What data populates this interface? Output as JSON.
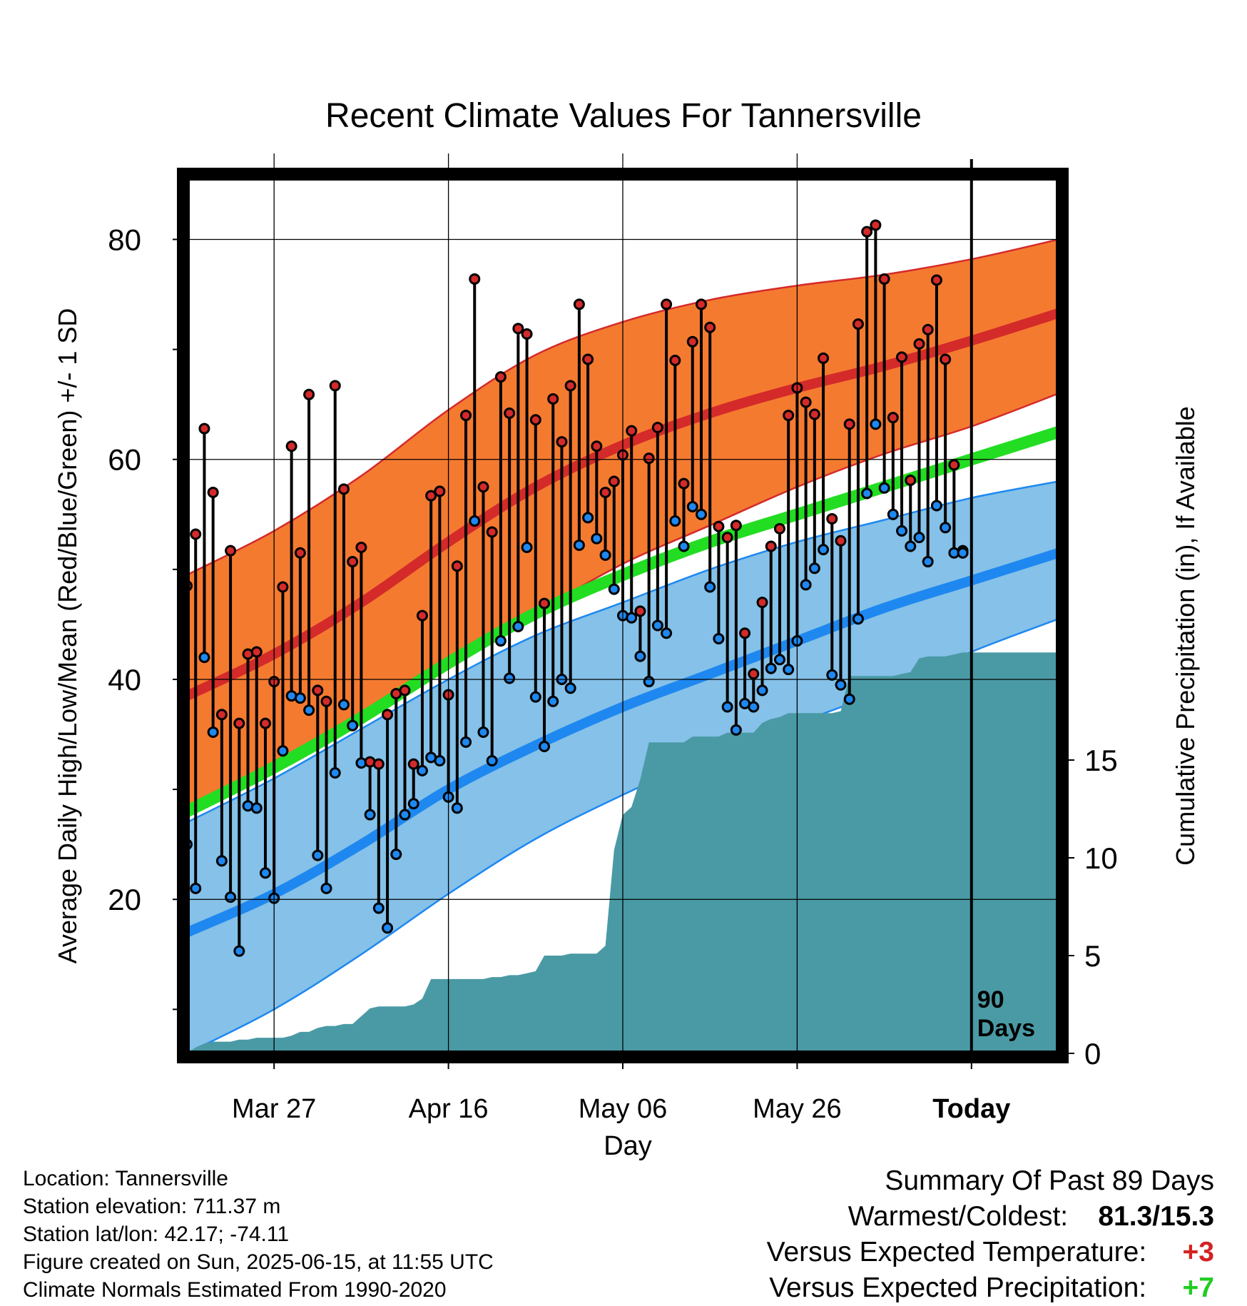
{
  "title": "Recent Climate Values For Tannersville",
  "xlabel": "Day",
  "ylabel_left": "Average Daily High/Low/Mean (Red/Blue/Green) +/- 1 SD",
  "ylabel_right": "Cumulative Precipitation (in), If Available",
  "today_marker": {
    "line1": "90",
    "line2": "Days"
  },
  "info": {
    "location": "Location: Tannersville",
    "elevation": "Station elevation: 711.37 m",
    "latlon": "Station lat/lon: 42.17; -74.11",
    "created": "Figure created on Sun, 2025-06-15, at 11:55 UTC",
    "normals": "Climate Normals Estimated From 1990-2020"
  },
  "summary": {
    "heading": "Summary Of Past 89 Days",
    "warm_cold_label": "Warmest/Coldest:",
    "warm_cold_value": "81.3/15.3",
    "temp_label": "Versus Expected Temperature:",
    "temp_value": "+3",
    "precip_label": "Versus Expected Precipitation:",
    "precip_value": "+7"
  },
  "colors": {
    "high_band": "#f47a30",
    "high_mean": "#d42a2a",
    "low_band": "#85c1e8",
    "low_mean": "#1e88f0",
    "mean": "#22dd22",
    "precip": "#4a9aa5"
  },
  "chart_data": {
    "type": "line",
    "x_axis": {
      "label": "Day",
      "range": [
        -90,
        10
      ],
      "ticks": [
        {
          "x": -80,
          "label": "Mar 27"
        },
        {
          "x": -60,
          "label": "Apr 16"
        },
        {
          "x": -40,
          "label": "May 06"
        },
        {
          "x": -20,
          "label": "May 26"
        },
        {
          "x": 0,
          "label": "Today"
        }
      ]
    },
    "y_left": {
      "range": [
        6,
        86
      ],
      "ticks": [
        20,
        40,
        60,
        80
      ],
      "minor_ticks": [
        10,
        30,
        50,
        70
      ]
    },
    "y_right": {
      "range": [
        0,
        45
      ],
      "ticks": [
        0,
        5,
        10,
        15
      ]
    },
    "grid": true,
    "normals": {
      "x": [
        -90,
        -80,
        -70,
        -60,
        -50,
        -40,
        -30,
        -20,
        -10,
        0,
        10
      ],
      "high_mean": [
        38.5,
        42.3,
        47.0,
        52.5,
        57.5,
        61.3,
        64.2,
        66.5,
        68.5,
        70.8,
        73.3
      ],
      "high_upper": [
        49.5,
        53.5,
        58.5,
        64.5,
        69.5,
        72.5,
        74.5,
        75.8,
        76.8,
        78.2,
        80.0
      ],
      "high_lower": [
        28.0,
        31.5,
        36.0,
        41.0,
        46.0,
        50.5,
        54.0,
        57.5,
        60.5,
        63.0,
        66.0
      ],
      "mean": [
        28.0,
        32.0,
        36.5,
        41.5,
        46.0,
        49.5,
        52.5,
        55.0,
        57.5,
        60.0,
        62.5
      ],
      "low_mean": [
        17.0,
        20.5,
        25.0,
        30.0,
        34.0,
        37.5,
        40.5,
        43.5,
        46.5,
        49.0,
        51.5
      ],
      "low_upper": [
        27.0,
        31.0,
        35.5,
        40.0,
        44.0,
        47.0,
        50.0,
        52.5,
        54.5,
        56.5,
        58.0
      ],
      "low_lower": [
        6.0,
        10.0,
        15.0,
        20.5,
        25.5,
        29.5,
        33.0,
        36.0,
        39.0,
        42.5,
        45.5
      ]
    },
    "daily": {
      "x": [
        -90,
        -89,
        -88,
        -87,
        -86,
        -85,
        -84,
        -83,
        -82,
        -81,
        -80,
        -79,
        -78,
        -77,
        -76,
        -75,
        -74,
        -73,
        -72,
        -71,
        -70,
        -69,
        -68,
        -67,
        -66,
        -65,
        -64,
        -63,
        -62,
        -61,
        -60,
        -59,
        -58,
        -57,
        -56,
        -55,
        -54,
        -53,
        -52,
        -51,
        -50,
        -49,
        -48,
        -47,
        -46,
        -45,
        -44,
        -43,
        -42,
        -41,
        -40,
        -39,
        -38,
        -37,
        -36,
        -35,
        -34,
        -33,
        -32,
        -31,
        -30,
        -29,
        -28,
        -27,
        -26,
        -25,
        -24,
        -23,
        -22,
        -21,
        -20,
        -19,
        -18,
        -17,
        -16,
        -15,
        -14,
        -13,
        -12,
        -11,
        -10,
        -9,
        -8,
        -7,
        -6,
        -5,
        -4,
        -3,
        -2,
        -1
      ],
      "high": [
        48.5,
        53.2,
        62.8,
        57.0,
        36.8,
        51.7,
        36.0,
        42.3,
        42.5,
        36.0,
        39.8,
        48.4,
        61.2,
        51.5,
        65.9,
        39.0,
        38.0,
        66.7,
        57.3,
        50.7,
        52.0,
        32.5,
        32.3,
        36.8,
        38.7,
        39.0,
        32.3,
        45.8,
        56.7,
        57.1,
        38.6,
        50.3,
        64.0,
        76.4,
        57.5,
        53.4,
        67.5,
        64.2,
        71.9,
        71.4,
        63.6,
        46.9,
        65.5,
        61.6,
        66.7,
        74.1,
        69.1,
        61.2,
        57.0,
        58.0,
        60.4,
        62.6,
        46.2,
        60.1,
        62.9,
        74.1,
        69.0,
        57.8,
        70.7,
        74.1,
        72.0,
        53.9,
        52.9,
        54.0,
        44.2,
        40.5,
        47.0,
        52.1,
        53.7,
        64.0,
        66.5,
        65.2,
        64.1,
        69.2,
        54.6,
        52.6,
        63.2,
        72.3,
        80.7,
        81.3,
        76.4,
        63.8,
        69.3,
        58.1,
        70.5,
        71.8,
        76.3,
        69.1,
        59.5,
        51.7
      ],
      "low": [
        25.0,
        21.0,
        42.0,
        35.2,
        23.5,
        20.2,
        15.3,
        28.5,
        28.3,
        22.4,
        20.1,
        33.5,
        38.5,
        38.3,
        37.2,
        24.0,
        21.0,
        31.5,
        37.7,
        35.8,
        32.4,
        27.7,
        19.2,
        17.4,
        24.1,
        27.7,
        28.7,
        31.7,
        32.9,
        32.6,
        29.3,
        28.3,
        34.3,
        54.4,
        35.2,
        32.6,
        43.5,
        40.1,
        44.8,
        52.0,
        38.4,
        33.9,
        38.0,
        40.0,
        39.2,
        52.2,
        54.7,
        52.8,
        51.3,
        48.2,
        45.8,
        45.6,
        42.1,
        39.8,
        44.9,
        44.2,
        54.4,
        52.1,
        55.7,
        55.0,
        48.4,
        43.7,
        37.5,
        35.4,
        37.8,
        37.5,
        39.0,
        41.0,
        41.8,
        40.9,
        43.5,
        48.6,
        50.1,
        51.8,
        40.4,
        39.5,
        38.2,
        45.5,
        56.9,
        63.2,
        57.4,
        55.0,
        53.5,
        52.1,
        52.9,
        50.7,
        55.8,
        53.8,
        51.5,
        51.5
      ]
    },
    "precip": {
      "label": "Cumulative Precipitation (in), If Available",
      "x": [
        -90,
        -89,
        -88,
        -87,
        -86,
        -85,
        -84,
        -83,
        -82,
        -81,
        -80,
        -79,
        -78,
        -77,
        -76,
        -75,
        -74,
        -73,
        -72,
        -71,
        -70,
        -69,
        -68,
        -67,
        -66,
        -65,
        -64,
        -63,
        -62,
        -61,
        -60,
        -59,
        -58,
        -57,
        -56,
        -55,
        -54,
        -53,
        -52,
        -51,
        -50,
        -49,
        -48,
        -47,
        -46,
        -45,
        -44,
        -43,
        -42,
        -41,
        -40,
        -39,
        -38,
        -37,
        -36,
        -35,
        -34,
        -33,
        -32,
        -31,
        -30,
        -29,
        -28,
        -27,
        -26,
        -25,
        -24,
        -23,
        -22,
        -21,
        -20,
        -19,
        -18,
        -17,
        -16,
        -15,
        -14,
        -13,
        -12,
        -11,
        -10,
        -9,
        -8,
        -7,
        -6,
        -5,
        -4,
        -3,
        -2,
        -1,
        0,
        10
      ],
      "values": [
        0.0,
        0.3,
        0.5,
        0.6,
        0.6,
        0.6,
        0.7,
        0.7,
        0.8,
        0.8,
        0.8,
        0.8,
        0.9,
        1.1,
        1.1,
        1.3,
        1.4,
        1.4,
        1.5,
        1.5,
        1.9,
        2.3,
        2.4,
        2.4,
        2.4,
        2.4,
        2.5,
        2.8,
        3.8,
        3.8,
        3.8,
        3.8,
        3.8,
        3.8,
        3.8,
        3.9,
        3.9,
        4.0,
        4.0,
        4.1,
        4.2,
        5.0,
        5.0,
        5.0,
        5.1,
        5.1,
        5.1,
        5.1,
        5.5,
        10.4,
        12.2,
        12.6,
        14.0,
        15.9,
        15.9,
        15.9,
        15.9,
        15.9,
        16.2,
        16.2,
        16.2,
        16.2,
        16.4,
        16.4,
        16.4,
        16.4,
        16.9,
        17.1,
        17.2,
        17.4,
        17.4,
        17.4,
        17.4,
        17.4,
        17.4,
        17.5,
        19.3,
        19.3,
        19.3,
        19.3,
        19.3,
        19.3,
        19.4,
        19.5,
        20.2,
        20.3,
        20.3,
        20.3,
        20.4,
        20.5,
        20.5,
        20.5
      ]
    }
  }
}
